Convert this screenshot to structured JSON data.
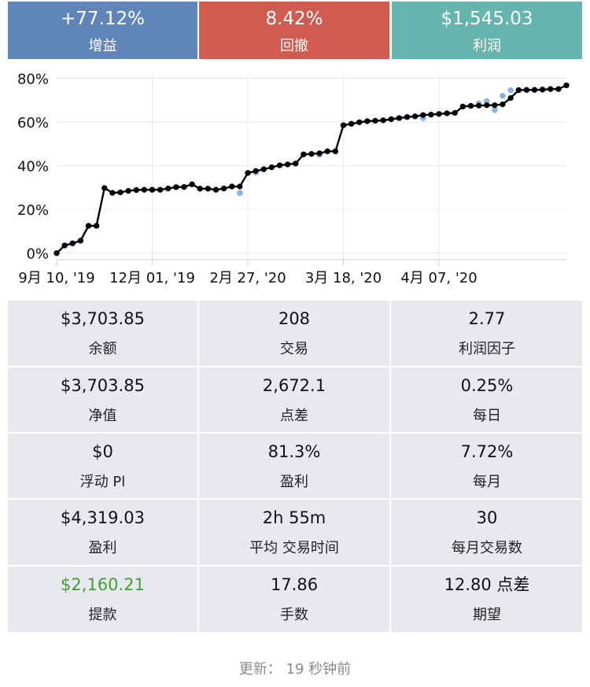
{
  "header": {
    "cards": [
      {
        "value": "+77.12%",
        "label": "增益",
        "color": "#6085b8"
      },
      {
        "value": "8.42%",
        "label": "回撤",
        "color": "#d25b51"
      },
      {
        "value": "$1,545.03",
        "label": "利润",
        "color": "#65b4ad"
      }
    ]
  },
  "chart_data": {
    "type": "line",
    "title": "",
    "xlabel": "",
    "ylabel": "",
    "ylim": [
      -3,
      82
    ],
    "y_ticks": [
      "0%",
      "20%",
      "40%",
      "60%",
      "80%"
    ],
    "y_tick_values": [
      0,
      20,
      40,
      60,
      80
    ],
    "x_tick_labels": [
      "9月 10, '19",
      "12月 01, '19",
      "2月 27, '20",
      "3月 18, '20",
      "4月 07, '20"
    ],
    "x_tick_trade_index": [
      0,
      12,
      24,
      36,
      48
    ],
    "grid": true,
    "legend": "none",
    "colors": {
      "equity": "#000000",
      "balance": "#8ab4e6"
    },
    "series": [
      {
        "values": [
          0,
          3.5,
          4.5,
          5.7,
          12.5,
          12.5,
          29.8,
          27.6,
          27.8,
          28.5,
          28.9,
          29.0,
          29.0,
          29.0,
          29.6,
          30.2,
          30.3,
          31.5,
          29.5,
          29.5,
          29.0,
          29.6,
          30.5,
          30.5,
          36.7,
          37.6,
          38.4,
          39.3,
          40.2,
          40.6,
          41.0,
          45.2,
          45.4,
          45.7,
          46.6,
          46.6,
          58.5,
          59.2,
          59.9,
          60.4,
          60.6,
          60.8,
          61.3,
          61.8,
          62.3,
          62.6,
          63.2,
          63.4,
          63.7,
          64.0,
          64.2,
          67.1,
          67.4,
          67.5,
          67.7,
          67.7,
          68.1,
          71.0,
          74.6,
          74.7,
          74.7,
          74.8,
          75.1,
          75.1,
          76.8
        ]
      },
      {
        "values": [
          0,
          3.5,
          4.5,
          5.7,
          12.5,
          12.5,
          29.8,
          27.6,
          27.8,
          28.5,
          28.9,
          29.0,
          29.0,
          29.0,
          29.6,
          30.2,
          30.3,
          31.5,
          29.5,
          29.5,
          29.0,
          29.6,
          30.5,
          27.5,
          36.7,
          37.0,
          38.4,
          39.3,
          40.2,
          40.6,
          41.0,
          45.2,
          45.4,
          45.0,
          46.6,
          46.6,
          58.5,
          59.2,
          59.9,
          60.4,
          60.6,
          60.8,
          61.3,
          61.8,
          62.3,
          62.6,
          61.8,
          63.4,
          63.7,
          64.0,
          64.2,
          67.1,
          67.4,
          68.5,
          69.5,
          65.5,
          72.0,
          74.6,
          74.7,
          74.7,
          74.8,
          75.1,
          75.1,
          75.1,
          76.8
        ]
      }
    ]
  },
  "stats": [
    [
      {
        "value": "$3,703.85",
        "label": "余额"
      },
      {
        "value": "208",
        "label": "交易"
      },
      {
        "value": "2.77",
        "label": "利润因子"
      }
    ],
    [
      {
        "value": "$3,703.85",
        "label": "净值"
      },
      {
        "value": "2,672.1",
        "label": "点差"
      },
      {
        "value": "0.25%",
        "label": "每日"
      }
    ],
    [
      {
        "value": "$0",
        "label": "浮动 Pl"
      },
      {
        "value": "81.3%",
        "label": "盈利"
      },
      {
        "value": "7.72%",
        "label": "每月"
      }
    ],
    [
      {
        "value": "$4,319.03",
        "label": "盈利"
      },
      {
        "value": "2h 55m",
        "label": "平均 交易时间"
      },
      {
        "value": "30",
        "label": "每月交易数"
      }
    ],
    [
      {
        "value": "$2,160.21",
        "label": "提款",
        "color": "#3aa52a"
      },
      {
        "value": "17.86",
        "label": "手数"
      },
      {
        "value": "12.80 点差",
        "label": "期望"
      }
    ]
  ],
  "footer": {
    "label": "更新：",
    "value": "19 秒钟前"
  }
}
